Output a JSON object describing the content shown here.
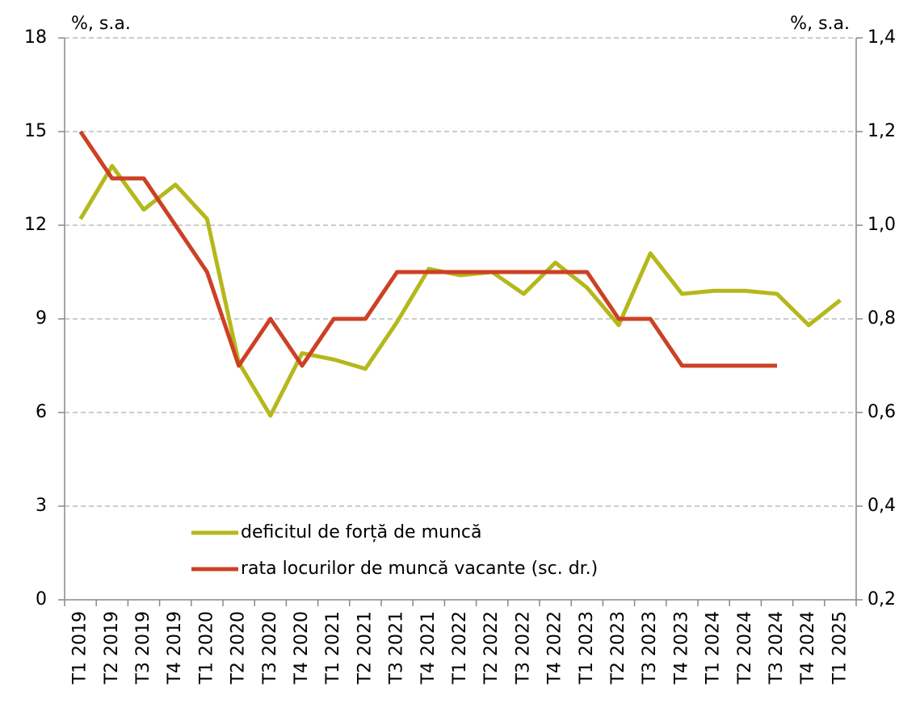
{
  "chart_data": {
    "type": "line",
    "y_label": "%, s.a.",
    "y2_label": "%, s.a.",
    "categories": [
      "T1 2019",
      "T2 2019",
      "T3 2019",
      "T4 2019",
      "T1 2020",
      "T2 2020",
      "T3 2020",
      "T4 2020",
      "T1 2021",
      "T2 2021",
      "T3 2021",
      "T4 2021",
      "T1 2022",
      "T2 2022",
      "T3 2022",
      "T4 2022",
      "T1 2023",
      "T2 2023",
      "T3 2023",
      "T4 2023",
      "T1 2024",
      "T2 2024",
      "T3 2024",
      "T4 2024",
      "T1 2025"
    ],
    "ylim": [
      0,
      18
    ],
    "yticks": [
      0,
      3,
      6,
      9,
      12,
      15,
      18
    ],
    "y2lim": [
      0.2,
      1.4
    ],
    "y2ticks": [
      {
        "value": 0.2,
        "label": "0,2"
      },
      {
        "value": 0.4,
        "label": "0,4"
      },
      {
        "value": 0.6,
        "label": "0,6"
      },
      {
        "value": 0.8,
        "label": "0,8"
      },
      {
        "value": 1.0,
        "label": "1,0"
      },
      {
        "value": 1.2,
        "label": "1,2"
      },
      {
        "value": 1.4,
        "label": "1,4"
      }
    ],
    "grid": true,
    "series": [
      {
        "name": "deficitul de forță de muncă",
        "color": "#b5b81a",
        "values": [
          12.2,
          13.9,
          12.5,
          13.3,
          12.2,
          7.6,
          5.9,
          7.9,
          7.7,
          7.4,
          8.9,
          10.6,
          10.4,
          10.5,
          9.8,
          10.8,
          10.0,
          8.8,
          11.1,
          9.8,
          9.9,
          9.9,
          9.8,
          8.8,
          9.6
        ]
      },
      {
        "name": "rata locurilor de muncă vacante (sc. dr.)",
        "color": "#cc4125",
        "axis": "y2",
        "values": [
          1.2,
          1.1,
          1.1,
          1.0,
          0.9,
          0.7,
          0.8,
          0.7,
          0.8,
          0.8,
          0.9,
          0.9,
          0.9,
          0.9,
          0.9,
          0.9,
          0.9,
          0.8,
          0.8,
          0.7,
          0.7,
          0.7,
          0.7,
          null,
          null
        ]
      }
    ]
  }
}
